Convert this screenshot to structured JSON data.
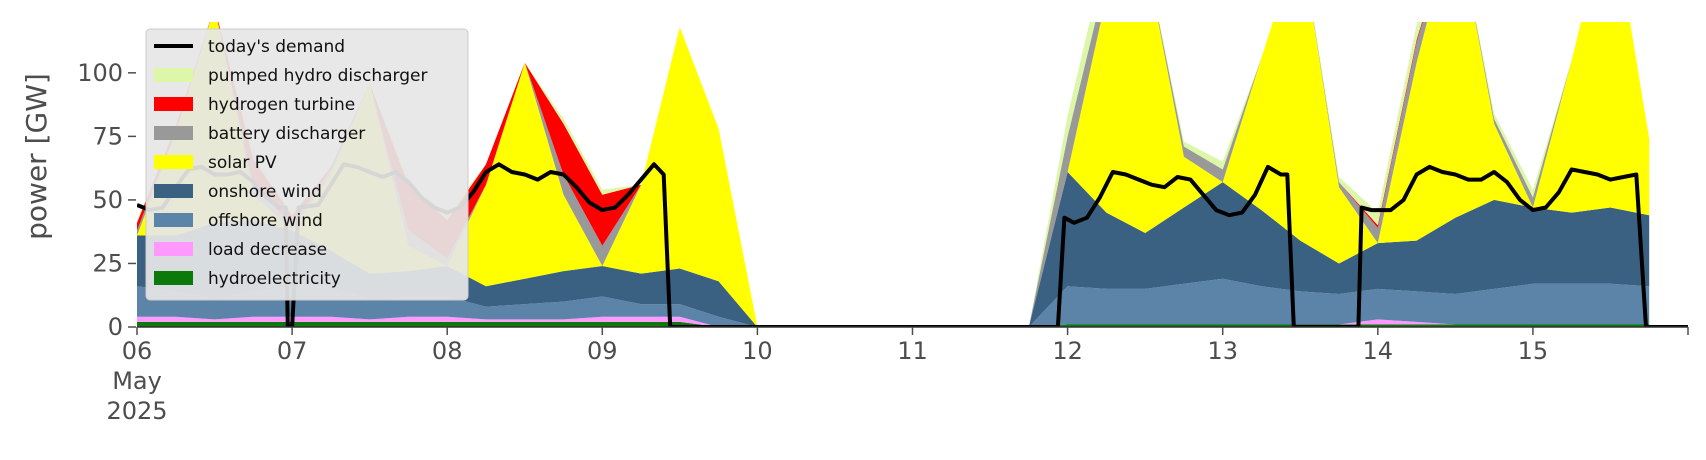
{
  "chart_data": {
    "type": "area",
    "ylabel": "power [GW]",
    "ylim": [
      0,
      120
    ],
    "yticks": [
      0,
      25,
      50,
      75,
      100
    ],
    "xlim": [
      "2025-05-06 00:00",
      "2025-05-16 00:00"
    ],
    "xtick_labels": [
      {
        "date": "2025-05-06",
        "lines": [
          "06",
          "May",
          "2025"
        ]
      },
      {
        "date": "2025-05-07",
        "lines": [
          "07"
        ]
      },
      {
        "date": "2025-05-08",
        "lines": [
          "08"
        ]
      },
      {
        "date": "2025-05-09",
        "lines": [
          "09"
        ]
      },
      {
        "date": "2025-05-10",
        "lines": [
          "10"
        ]
      },
      {
        "date": "2025-05-11",
        "lines": [
          "11"
        ]
      },
      {
        "date": "2025-05-12",
        "lines": [
          "12"
        ]
      },
      {
        "date": "2025-05-13",
        "lines": [
          "13"
        ]
      },
      {
        "date": "2025-05-14",
        "lines": [
          "14"
        ]
      },
      {
        "date": "2025-05-15",
        "lines": [
          "15"
        ]
      }
    ],
    "grid": false,
    "legend_position": "top-left",
    "stack_order": [
      "hydroelectricity",
      "load decrease",
      "offshore wind",
      "onshore wind",
      "solar PV",
      "battery discharger",
      "hydrogen turbine",
      "pumped hydro discharger"
    ],
    "legend_order": [
      "today's demand",
      "pumped hydro discharger",
      "hydrogen turbine",
      "battery discharger",
      "solar PV",
      "onshore wind",
      "offshore wind",
      "load decrease",
      "hydroelectricity"
    ],
    "colors": {
      "today's demand": "#000000",
      "pumped hydro discharger": "#dcf7a8",
      "hydrogen turbine": "#ff0000",
      "battery discharger": "#999999",
      "solar PV": "#ffff00",
      "onshore wind": "#3b6182",
      "offshore wind": "#5b84a8",
      "load decrease": "#ff99ff",
      "hydroelectricity": "#0b7a0b"
    },
    "x": [
      "2025-05-06 00:00",
      "2025-05-06 06:00",
      "2025-05-06 12:00",
      "2025-05-06 18:00",
      "2025-05-07 00:00",
      "2025-05-07 06:00",
      "2025-05-07 12:00",
      "2025-05-07 18:00",
      "2025-05-08 00:00",
      "2025-05-08 06:00",
      "2025-05-08 12:00",
      "2025-05-08 18:00",
      "2025-05-09 00:00",
      "2025-05-09 06:00",
      "2025-05-09 12:00",
      "2025-05-09 18:00",
      "2025-05-10 00:00",
      "2025-05-10 06:00",
      "2025-05-10 12:00",
      "2025-05-10 18:00",
      "2025-05-11 00:00",
      "2025-05-11 06:00",
      "2025-05-11 12:00",
      "2025-05-11 18:00",
      "2025-05-12 00:00",
      "2025-05-12 06:00",
      "2025-05-12 12:00",
      "2025-05-12 18:00",
      "2025-05-13 00:00",
      "2025-05-13 06:00",
      "2025-05-13 12:00",
      "2025-05-13 18:00",
      "2025-05-14 00:00",
      "2025-05-14 06:00",
      "2025-05-14 12:00",
      "2025-05-14 18:00",
      "2025-05-15 00:00",
      "2025-05-15 06:00",
      "2025-05-15 12:00",
      "2025-05-15 18:00"
    ],
    "series": [
      {
        "name": "hydroelectricity",
        "values": [
          2,
          2,
          2,
          2,
          2,
          2,
          2,
          2,
          2,
          2,
          2,
          2,
          2,
          2,
          2,
          0,
          0,
          0,
          0,
          0,
          0,
          0,
          0,
          0,
          1,
          1,
          1,
          1,
          1,
          1,
          1,
          1,
          1,
          1,
          1,
          1,
          1,
          1,
          1,
          1
        ]
      },
      {
        "name": "load decrease",
        "values": [
          2,
          2,
          1,
          2,
          2,
          2,
          1,
          2,
          2,
          1,
          1,
          1,
          2,
          2,
          2,
          0,
          0,
          0,
          0,
          0,
          0,
          0,
          0,
          0,
          0,
          0,
          0,
          0,
          0,
          0,
          0,
          0,
          2,
          1,
          0,
          0,
          0,
          0,
          0,
          0
        ]
      },
      {
        "name": "offshore wind",
        "values": [
          12,
          10,
          8,
          10,
          12,
          12,
          8,
          8,
          8,
          5,
          6,
          7,
          8,
          5,
          5,
          4,
          0,
          0,
          0,
          0,
          0,
          0,
          0,
          0,
          15,
          14,
          14,
          16,
          18,
          15,
          13,
          12,
          12,
          12,
          12,
          14,
          16,
          16,
          16,
          15
        ]
      },
      {
        "name": "onshore wind",
        "values": [
          20,
          22,
          30,
          28,
          22,
          14,
          10,
          10,
          12,
          8,
          10,
          12,
          12,
          12,
          14,
          14,
          0,
          0,
          0,
          0,
          0,
          0,
          0,
          0,
          45,
          30,
          22,
          30,
          38,
          30,
          20,
          12,
          18,
          20,
          30,
          35,
          30,
          28,
          30,
          28
        ]
      },
      {
        "name": "solar PV",
        "values": [
          0,
          40,
          85,
          10,
          0,
          30,
          75,
          10,
          0,
          40,
          85,
          30,
          0,
          35,
          95,
          60,
          0,
          0,
          0,
          0,
          0,
          0,
          0,
          0,
          0,
          85,
          110,
          20,
          0,
          60,
          120,
          30,
          0,
          70,
          120,
          30,
          0,
          60,
          120,
          30
        ]
      },
      {
        "name": "battery discharger",
        "values": [
          2,
          1,
          0,
          4,
          2,
          2,
          0,
          6,
          3,
          0,
          0,
          8,
          8,
          0,
          0,
          0,
          0,
          0,
          0,
          0,
          0,
          0,
          0,
          0,
          14,
          8,
          0,
          4,
          5,
          0,
          0,
          2,
          6,
          8,
          0,
          2,
          4,
          0,
          0,
          0
        ]
      },
      {
        "name": "hydrogen turbine",
        "values": [
          3,
          2,
          0,
          10,
          4,
          1,
          0,
          18,
          15,
          8,
          0,
          20,
          20,
          0,
          0,
          0,
          0,
          0,
          0,
          0,
          0,
          0,
          0,
          0,
          0,
          0,
          0,
          0,
          0,
          0,
          0,
          0,
          1,
          1,
          0,
          0,
          0,
          0,
          0,
          0
        ]
      },
      {
        "name": "pumped hydro discharger",
        "values": [
          1,
          0,
          0,
          2,
          1,
          0,
          0,
          2,
          2,
          0,
          0,
          2,
          2,
          0,
          0,
          0,
          0,
          0,
          0,
          0,
          0,
          0,
          0,
          0,
          8,
          10,
          0,
          2,
          3,
          0,
          0,
          2,
          5,
          6,
          0,
          2,
          3,
          0,
          0,
          0
        ]
      }
    ],
    "demand": {
      "name": "today's demand",
      "points": [
        [
          "2025-05-06 00:00",
          48
        ],
        [
          "2025-05-06 02:00",
          46
        ],
        [
          "2025-05-06 04:00",
          47
        ],
        [
          "2025-05-06 06:00",
          55
        ],
        [
          "2025-05-06 08:00",
          62
        ],
        [
          "2025-05-06 10:00",
          63
        ],
        [
          "2025-05-06 12:00",
          60
        ],
        [
          "2025-05-06 14:00",
          60
        ],
        [
          "2025-05-06 16:00",
          61
        ],
        [
          "2025-05-06 18:00",
          57
        ],
        [
          "2025-05-06 20:00",
          51
        ],
        [
          "2025-05-06 22:00",
          47
        ],
        [
          "2025-05-06 23:00",
          47
        ],
        [
          "2025-05-06 23:20",
          0
        ],
        [
          "2025-05-07 00:00",
          0
        ],
        [
          "2025-05-07 01:00",
          47
        ],
        [
          "2025-05-07 04:00",
          48
        ],
        [
          "2025-05-07 06:00",
          56
        ],
        [
          "2025-05-07 08:00",
          64
        ],
        [
          "2025-05-07 10:00",
          63
        ],
        [
          "2025-05-07 12:00",
          61
        ],
        [
          "2025-05-07 14:00",
          59
        ],
        [
          "2025-05-07 16:00",
          61
        ],
        [
          "2025-05-07 18:00",
          57
        ],
        [
          "2025-05-07 20:00",
          51
        ],
        [
          "2025-05-07 22:00",
          47
        ],
        [
          "2025-05-08 00:00",
          45
        ],
        [
          "2025-05-08 02:00",
          47
        ],
        [
          "2025-05-08 04:00",
          53
        ],
        [
          "2025-05-08 06:00",
          61
        ],
        [
          "2025-05-08 08:00",
          64
        ],
        [
          "2025-05-08 10:00",
          61
        ],
        [
          "2025-05-08 12:00",
          60
        ],
        [
          "2025-05-08 14:00",
          58
        ],
        [
          "2025-05-08 16:00",
          61
        ],
        [
          "2025-05-08 18:00",
          60
        ],
        [
          "2025-05-08 20:00",
          55
        ],
        [
          "2025-05-08 22:00",
          49
        ],
        [
          "2025-05-09 00:00",
          46
        ],
        [
          "2025-05-09 02:00",
          47
        ],
        [
          "2025-05-09 04:00",
          52
        ],
        [
          "2025-05-09 06:00",
          58
        ],
        [
          "2025-05-09 08:00",
          64
        ],
        [
          "2025-05-09 09:30",
          60
        ],
        [
          "2025-05-09 10:30",
          0
        ],
        [
          "2025-05-09 12:00",
          0
        ],
        [
          "2025-05-11 22:30",
          0
        ],
        [
          "2025-05-11 23:30",
          43
        ],
        [
          "2025-05-12 01:00",
          41
        ],
        [
          "2025-05-12 03:00",
          43
        ],
        [
          "2025-05-12 05:00",
          51
        ],
        [
          "2025-05-12 07:00",
          61
        ],
        [
          "2025-05-12 09:00",
          60
        ],
        [
          "2025-05-12 11:00",
          58
        ],
        [
          "2025-05-12 13:00",
          56
        ],
        [
          "2025-05-12 15:00",
          55
        ],
        [
          "2025-05-12 17:00",
          59
        ],
        [
          "2025-05-12 19:00",
          58
        ],
        [
          "2025-05-12 21:00",
          52
        ],
        [
          "2025-05-12 23:00",
          46
        ],
        [
          "2025-05-13 01:00",
          44
        ],
        [
          "2025-05-13 03:00",
          45
        ],
        [
          "2025-05-13 05:00",
          52
        ],
        [
          "2025-05-13 07:00",
          63
        ],
        [
          "2025-05-13 09:00",
          60
        ],
        [
          "2025-05-13 10:00",
          60
        ],
        [
          "2025-05-13 11:00",
          0
        ],
        [
          "2025-05-13 21:00",
          0
        ],
        [
          "2025-05-13 21:30",
          47
        ],
        [
          "2025-05-13 23:00",
          46
        ],
        [
          "2025-05-14 02:00",
          46
        ],
        [
          "2025-05-14 04:00",
          50
        ],
        [
          "2025-05-14 06:00",
          60
        ],
        [
          "2025-05-14 08:00",
          63
        ],
        [
          "2025-05-14 10:00",
          61
        ],
        [
          "2025-05-14 12:00",
          60
        ],
        [
          "2025-05-14 14:00",
          58
        ],
        [
          "2025-05-14 16:00",
          58
        ],
        [
          "2025-05-14 18:00",
          61
        ],
        [
          "2025-05-14 20:00",
          57
        ],
        [
          "2025-05-14 22:00",
          50
        ],
        [
          "2025-05-15 00:00",
          46
        ],
        [
          "2025-05-15 02:00",
          47
        ],
        [
          "2025-05-15 04:00",
          53
        ],
        [
          "2025-05-15 06:00",
          62
        ],
        [
          "2025-05-15 08:00",
          61
        ],
        [
          "2025-05-15 10:00",
          60
        ],
        [
          "2025-05-15 12:00",
          58
        ],
        [
          "2025-05-15 14:00",
          59
        ],
        [
          "2025-05-15 16:00",
          60
        ],
        [
          "2025-05-15 17:30",
          0
        ],
        [
          "2025-05-16 00:00",
          0
        ]
      ]
    }
  }
}
